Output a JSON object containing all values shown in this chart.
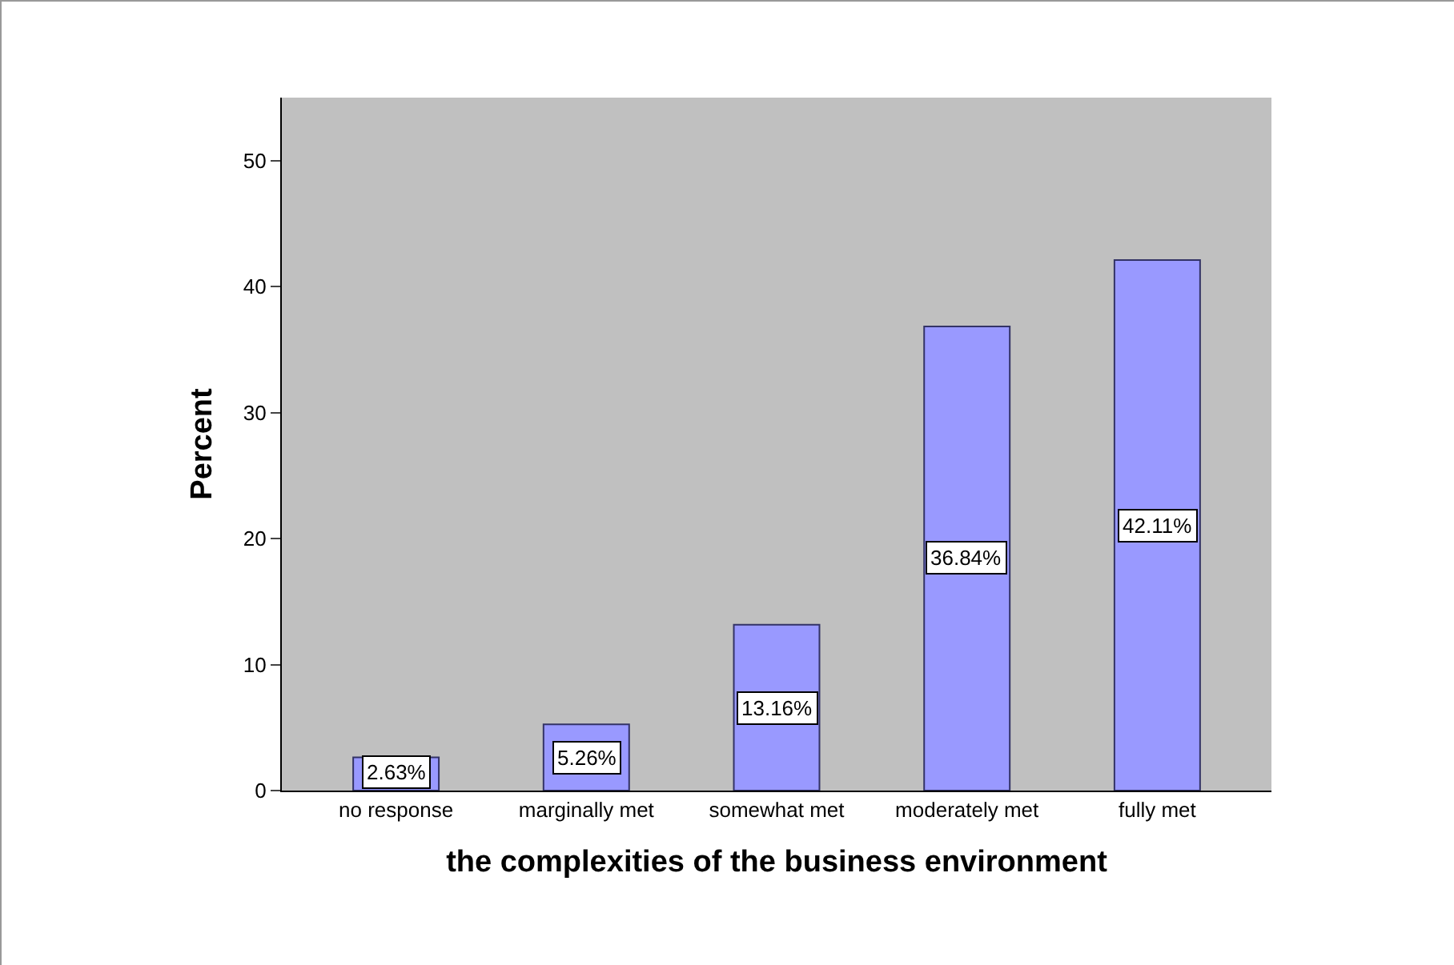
{
  "chart_data": {
    "type": "bar",
    "xlabel": "the complexities of the business environment",
    "ylabel": "Percent",
    "categories": [
      "no response",
      "marginally met",
      "somewhat met",
      "moderately met",
      "fully met"
    ],
    "values": [
      2.63,
      5.26,
      13.16,
      36.84,
      42.11
    ],
    "value_labels": [
      "2.63%",
      "5.26%",
      "13.16%",
      "36.84%",
      "42.11%"
    ],
    "color": "#9999ff",
    "ylim": [
      0,
      55
    ],
    "yticks": [
      0,
      10,
      20,
      30,
      40,
      50
    ],
    "grid": false,
    "legend": false
  }
}
